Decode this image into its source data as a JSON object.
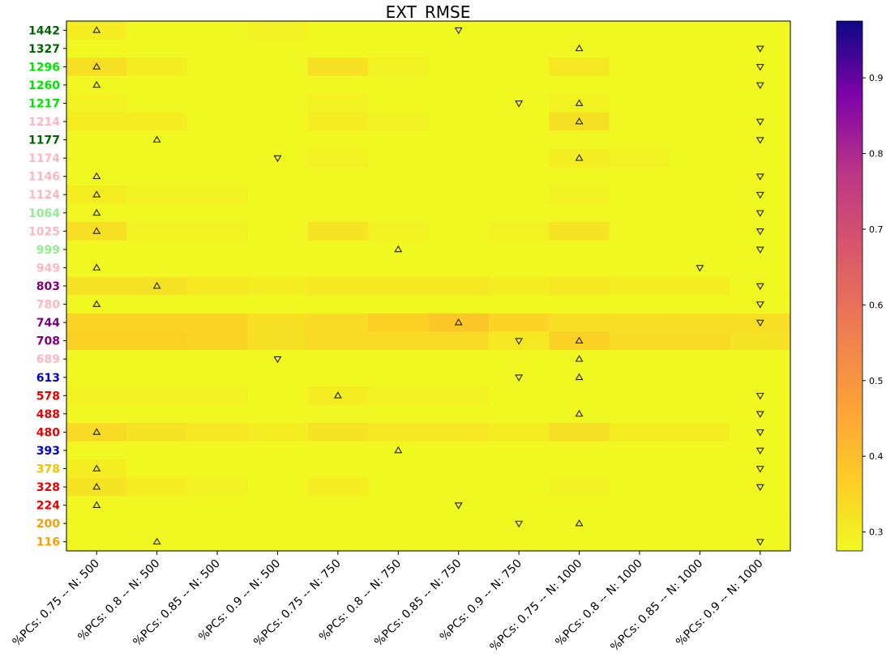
{
  "chart_data": {
    "type": "heatmap",
    "title": "EXT_RMSE",
    "xlabel": "",
    "ylabel": "",
    "columns": [
      "%PCs: 0.75 -- N: 500",
      "%PCs: 0.8 -- N: 500",
      "%PCs: 0.85 -- N: 500",
      "%PCs: 0.9 -- N: 500",
      "%PCs: 0.75 -- N: 750",
      "%PCs: 0.8 -- N: 750",
      "%PCs: 0.85 -- N: 750",
      "%PCs: 0.9 -- N: 750",
      "%PCs: 0.75 -- N: 1000",
      "%PCs: 0.8 -- N: 1000",
      "%PCs: 0.85 -- N: 1000",
      "%PCs: 0.9 -- N: 1000"
    ],
    "rows": [
      {
        "label": "1442",
        "color": "#006400",
        "values": [
          0.3,
          0.28,
          0.28,
          0.29,
          0.28,
          0.28,
          0.28,
          0.28,
          0.28,
          0.28,
          0.28,
          0.28
        ],
        "markers": [
          [
            0,
            "up"
          ],
          [
            6,
            "down"
          ]
        ]
      },
      {
        "label": "1327",
        "color": "#006400",
        "values": [
          0.28,
          0.28,
          0.28,
          0.28,
          0.28,
          0.28,
          0.28,
          0.28,
          0.28,
          0.28,
          0.28,
          0.28
        ],
        "markers": [
          [
            8,
            "up"
          ],
          [
            11,
            "down"
          ]
        ]
      },
      {
        "label": "1296",
        "color": "#00e600",
        "values": [
          0.33,
          0.3,
          0.28,
          0.28,
          0.33,
          0.29,
          0.28,
          0.28,
          0.31,
          0.28,
          0.28,
          0.28
        ],
        "markers": [
          [
            0,
            "up"
          ],
          [
            11,
            "down"
          ]
        ]
      },
      {
        "label": "1260",
        "color": "#00e600",
        "values": [
          0.28,
          0.28,
          0.28,
          0.28,
          0.28,
          0.28,
          0.28,
          0.28,
          0.28,
          0.28,
          0.28,
          0.28
        ],
        "markers": [
          [
            0,
            "up"
          ],
          [
            11,
            "down"
          ]
        ]
      },
      {
        "label": "1217",
        "color": "#00e600",
        "values": [
          0.29,
          0.28,
          0.28,
          0.28,
          0.29,
          0.28,
          0.28,
          0.28,
          0.29,
          0.28,
          0.28,
          0.28
        ],
        "markers": [
          [
            7,
            "down"
          ],
          [
            8,
            "up"
          ]
        ]
      },
      {
        "label": "1214",
        "color": "#ffb6c1",
        "values": [
          0.3,
          0.3,
          0.28,
          0.28,
          0.3,
          0.29,
          0.28,
          0.28,
          0.33,
          0.28,
          0.28,
          0.28
        ],
        "markers": [
          [
            8,
            "up"
          ],
          [
            11,
            "down"
          ]
        ]
      },
      {
        "label": "1177",
        "color": "#006400",
        "values": [
          0.28,
          0.28,
          0.28,
          0.28,
          0.28,
          0.28,
          0.28,
          0.28,
          0.28,
          0.28,
          0.28,
          0.28
        ],
        "markers": [
          [
            1,
            "up"
          ],
          [
            11,
            "down"
          ]
        ]
      },
      {
        "label": "1174",
        "color": "#ffb6c1",
        "values": [
          0.28,
          0.28,
          0.28,
          0.28,
          0.29,
          0.28,
          0.28,
          0.28,
          0.3,
          0.29,
          0.28,
          0.28
        ],
        "markers": [
          [
            3,
            "down"
          ],
          [
            8,
            "up"
          ]
        ]
      },
      {
        "label": "1146",
        "color": "#ffb6c1",
        "values": [
          0.28,
          0.28,
          0.28,
          0.28,
          0.28,
          0.28,
          0.28,
          0.28,
          0.28,
          0.28,
          0.28,
          0.28
        ],
        "markers": [
          [
            0,
            "up"
          ],
          [
            11,
            "down"
          ]
        ]
      },
      {
        "label": "1124",
        "color": "#ffb6c1",
        "values": [
          0.3,
          0.29,
          0.29,
          0.28,
          0.28,
          0.28,
          0.28,
          0.28,
          0.29,
          0.28,
          0.28,
          0.28
        ],
        "markers": [
          [
            0,
            "up"
          ],
          [
            11,
            "down"
          ]
        ]
      },
      {
        "label": "1064",
        "color": "#90ee90",
        "values": [
          0.28,
          0.28,
          0.28,
          0.28,
          0.28,
          0.28,
          0.28,
          0.28,
          0.28,
          0.28,
          0.28,
          0.28
        ],
        "markers": [
          [
            0,
            "up"
          ],
          [
            11,
            "down"
          ]
        ]
      },
      {
        "label": "1025",
        "color": "#ffb6c1",
        "values": [
          0.33,
          0.29,
          0.29,
          0.28,
          0.32,
          0.29,
          0.28,
          0.29,
          0.32,
          0.28,
          0.28,
          0.28
        ],
        "markers": [
          [
            0,
            "up"
          ],
          [
            11,
            "down"
          ]
        ]
      },
      {
        "label": "999",
        "color": "#90ee90",
        "values": [
          0.28,
          0.28,
          0.28,
          0.28,
          0.28,
          0.28,
          0.28,
          0.28,
          0.28,
          0.28,
          0.28,
          0.28
        ],
        "markers": [
          [
            5,
            "up"
          ],
          [
            11,
            "down"
          ]
        ]
      },
      {
        "label": "949",
        "color": "#ffb6c1",
        "values": [
          0.28,
          0.28,
          0.28,
          0.28,
          0.28,
          0.28,
          0.28,
          0.28,
          0.28,
          0.28,
          0.28,
          0.28
        ],
        "markers": [
          [
            0,
            "up"
          ],
          [
            10,
            "down"
          ]
        ]
      },
      {
        "label": "803",
        "color": "#800080",
        "values": [
          0.32,
          0.32,
          0.31,
          0.3,
          0.31,
          0.31,
          0.31,
          0.3,
          0.31,
          0.3,
          0.3,
          0.28
        ],
        "markers": [
          [
            1,
            "up"
          ],
          [
            11,
            "down"
          ]
        ]
      },
      {
        "label": "780",
        "color": "#ffb6c1",
        "values": [
          0.28,
          0.28,
          0.28,
          0.28,
          0.28,
          0.28,
          0.28,
          0.28,
          0.28,
          0.28,
          0.28,
          0.28
        ],
        "markers": [
          [
            0,
            "up"
          ],
          [
            11,
            "down"
          ]
        ]
      },
      {
        "label": "744",
        "color": "#800080",
        "values": [
          0.35,
          0.35,
          0.35,
          0.33,
          0.34,
          0.36,
          0.38,
          0.35,
          0.33,
          0.33,
          0.33,
          0.33
        ],
        "markers": [
          [
            6,
            "up"
          ],
          [
            11,
            "down"
          ]
        ]
      },
      {
        "label": "708",
        "color": "#800080",
        "values": [
          0.36,
          0.36,
          0.35,
          0.33,
          0.34,
          0.34,
          0.34,
          0.31,
          0.36,
          0.34,
          0.34,
          0.32
        ],
        "markers": [
          [
            7,
            "down"
          ],
          [
            8,
            "up"
          ]
        ]
      },
      {
        "label": "689",
        "color": "#ffb6c1",
        "values": [
          0.28,
          0.28,
          0.28,
          0.28,
          0.28,
          0.28,
          0.28,
          0.28,
          0.28,
          0.28,
          0.28,
          0.28
        ],
        "markers": [
          [
            3,
            "down"
          ],
          [
            8,
            "up"
          ]
        ]
      },
      {
        "label": "613",
        "color": "#0000cd",
        "values": [
          0.28,
          0.28,
          0.28,
          0.28,
          0.28,
          0.28,
          0.28,
          0.28,
          0.28,
          0.28,
          0.28,
          0.28
        ],
        "markers": [
          [
            7,
            "down"
          ],
          [
            8,
            "up"
          ]
        ]
      },
      {
        "label": "578",
        "color": "#e60000",
        "values": [
          0.29,
          0.29,
          0.29,
          0.28,
          0.3,
          0.29,
          0.29,
          0.28,
          0.28,
          0.28,
          0.28,
          0.28
        ],
        "markers": [
          [
            4,
            "up"
          ],
          [
            11,
            "down"
          ]
        ]
      },
      {
        "label": "488",
        "color": "#e60000",
        "values": [
          0.28,
          0.28,
          0.28,
          0.28,
          0.28,
          0.28,
          0.28,
          0.28,
          0.28,
          0.28,
          0.28,
          0.28
        ],
        "markers": [
          [
            8,
            "up"
          ],
          [
            11,
            "down"
          ]
        ]
      },
      {
        "label": "480",
        "color": "#e60000",
        "values": [
          0.34,
          0.32,
          0.31,
          0.3,
          0.32,
          0.31,
          0.31,
          0.3,
          0.33,
          0.3,
          0.3,
          0.28
        ],
        "markers": [
          [
            0,
            "up"
          ],
          [
            11,
            "down"
          ]
        ]
      },
      {
        "label": "393",
        "color": "#0000cd",
        "values": [
          0.28,
          0.28,
          0.28,
          0.28,
          0.28,
          0.28,
          0.28,
          0.28,
          0.28,
          0.28,
          0.28,
          0.28
        ],
        "markers": [
          [
            5,
            "up"
          ],
          [
            11,
            "down"
          ]
        ]
      },
      {
        "label": "378",
        "color": "#f2c200",
        "values": [
          0.3,
          0.28,
          0.28,
          0.28,
          0.28,
          0.28,
          0.28,
          0.28,
          0.28,
          0.28,
          0.28,
          0.28
        ],
        "markers": [
          [
            0,
            "up"
          ],
          [
            11,
            "down"
          ]
        ]
      },
      {
        "label": "328",
        "color": "#e60000",
        "values": [
          0.32,
          0.3,
          0.29,
          0.28,
          0.3,
          0.28,
          0.28,
          0.28,
          0.29,
          0.28,
          0.28,
          0.28
        ],
        "markers": [
          [
            0,
            "up"
          ],
          [
            11,
            "down"
          ]
        ]
      },
      {
        "label": "224",
        "color": "#e60000",
        "values": [
          0.28,
          0.28,
          0.28,
          0.28,
          0.28,
          0.28,
          0.28,
          0.28,
          0.28,
          0.28,
          0.28,
          0.28
        ],
        "markers": [
          [
            0,
            "up"
          ],
          [
            6,
            "down"
          ]
        ]
      },
      {
        "label": "200",
        "color": "#f5a000",
        "values": [
          0.28,
          0.28,
          0.28,
          0.28,
          0.28,
          0.28,
          0.28,
          0.28,
          0.28,
          0.28,
          0.28,
          0.28
        ],
        "markers": [
          [
            7,
            "down"
          ],
          [
            8,
            "up"
          ]
        ]
      },
      {
        "label": "116",
        "color": "#f5a000",
        "values": [
          0.28,
          0.28,
          0.28,
          0.28,
          0.28,
          0.28,
          0.28,
          0.28,
          0.28,
          0.28,
          0.28,
          0.28
        ],
        "markers": [
          [
            1,
            "up"
          ],
          [
            11,
            "down"
          ]
        ]
      }
    ],
    "colorbar": {
      "colormap": "plasma_r",
      "range": [
        0.275,
        0.975
      ],
      "ticks": [
        0.3,
        0.4,
        0.5,
        0.6,
        0.7,
        0.8,
        0.9
      ],
      "tick_labels": [
        "0.3",
        "0.4",
        "0.5",
        "0.6",
        "0.7",
        "0.8",
        "0.9"
      ]
    }
  }
}
